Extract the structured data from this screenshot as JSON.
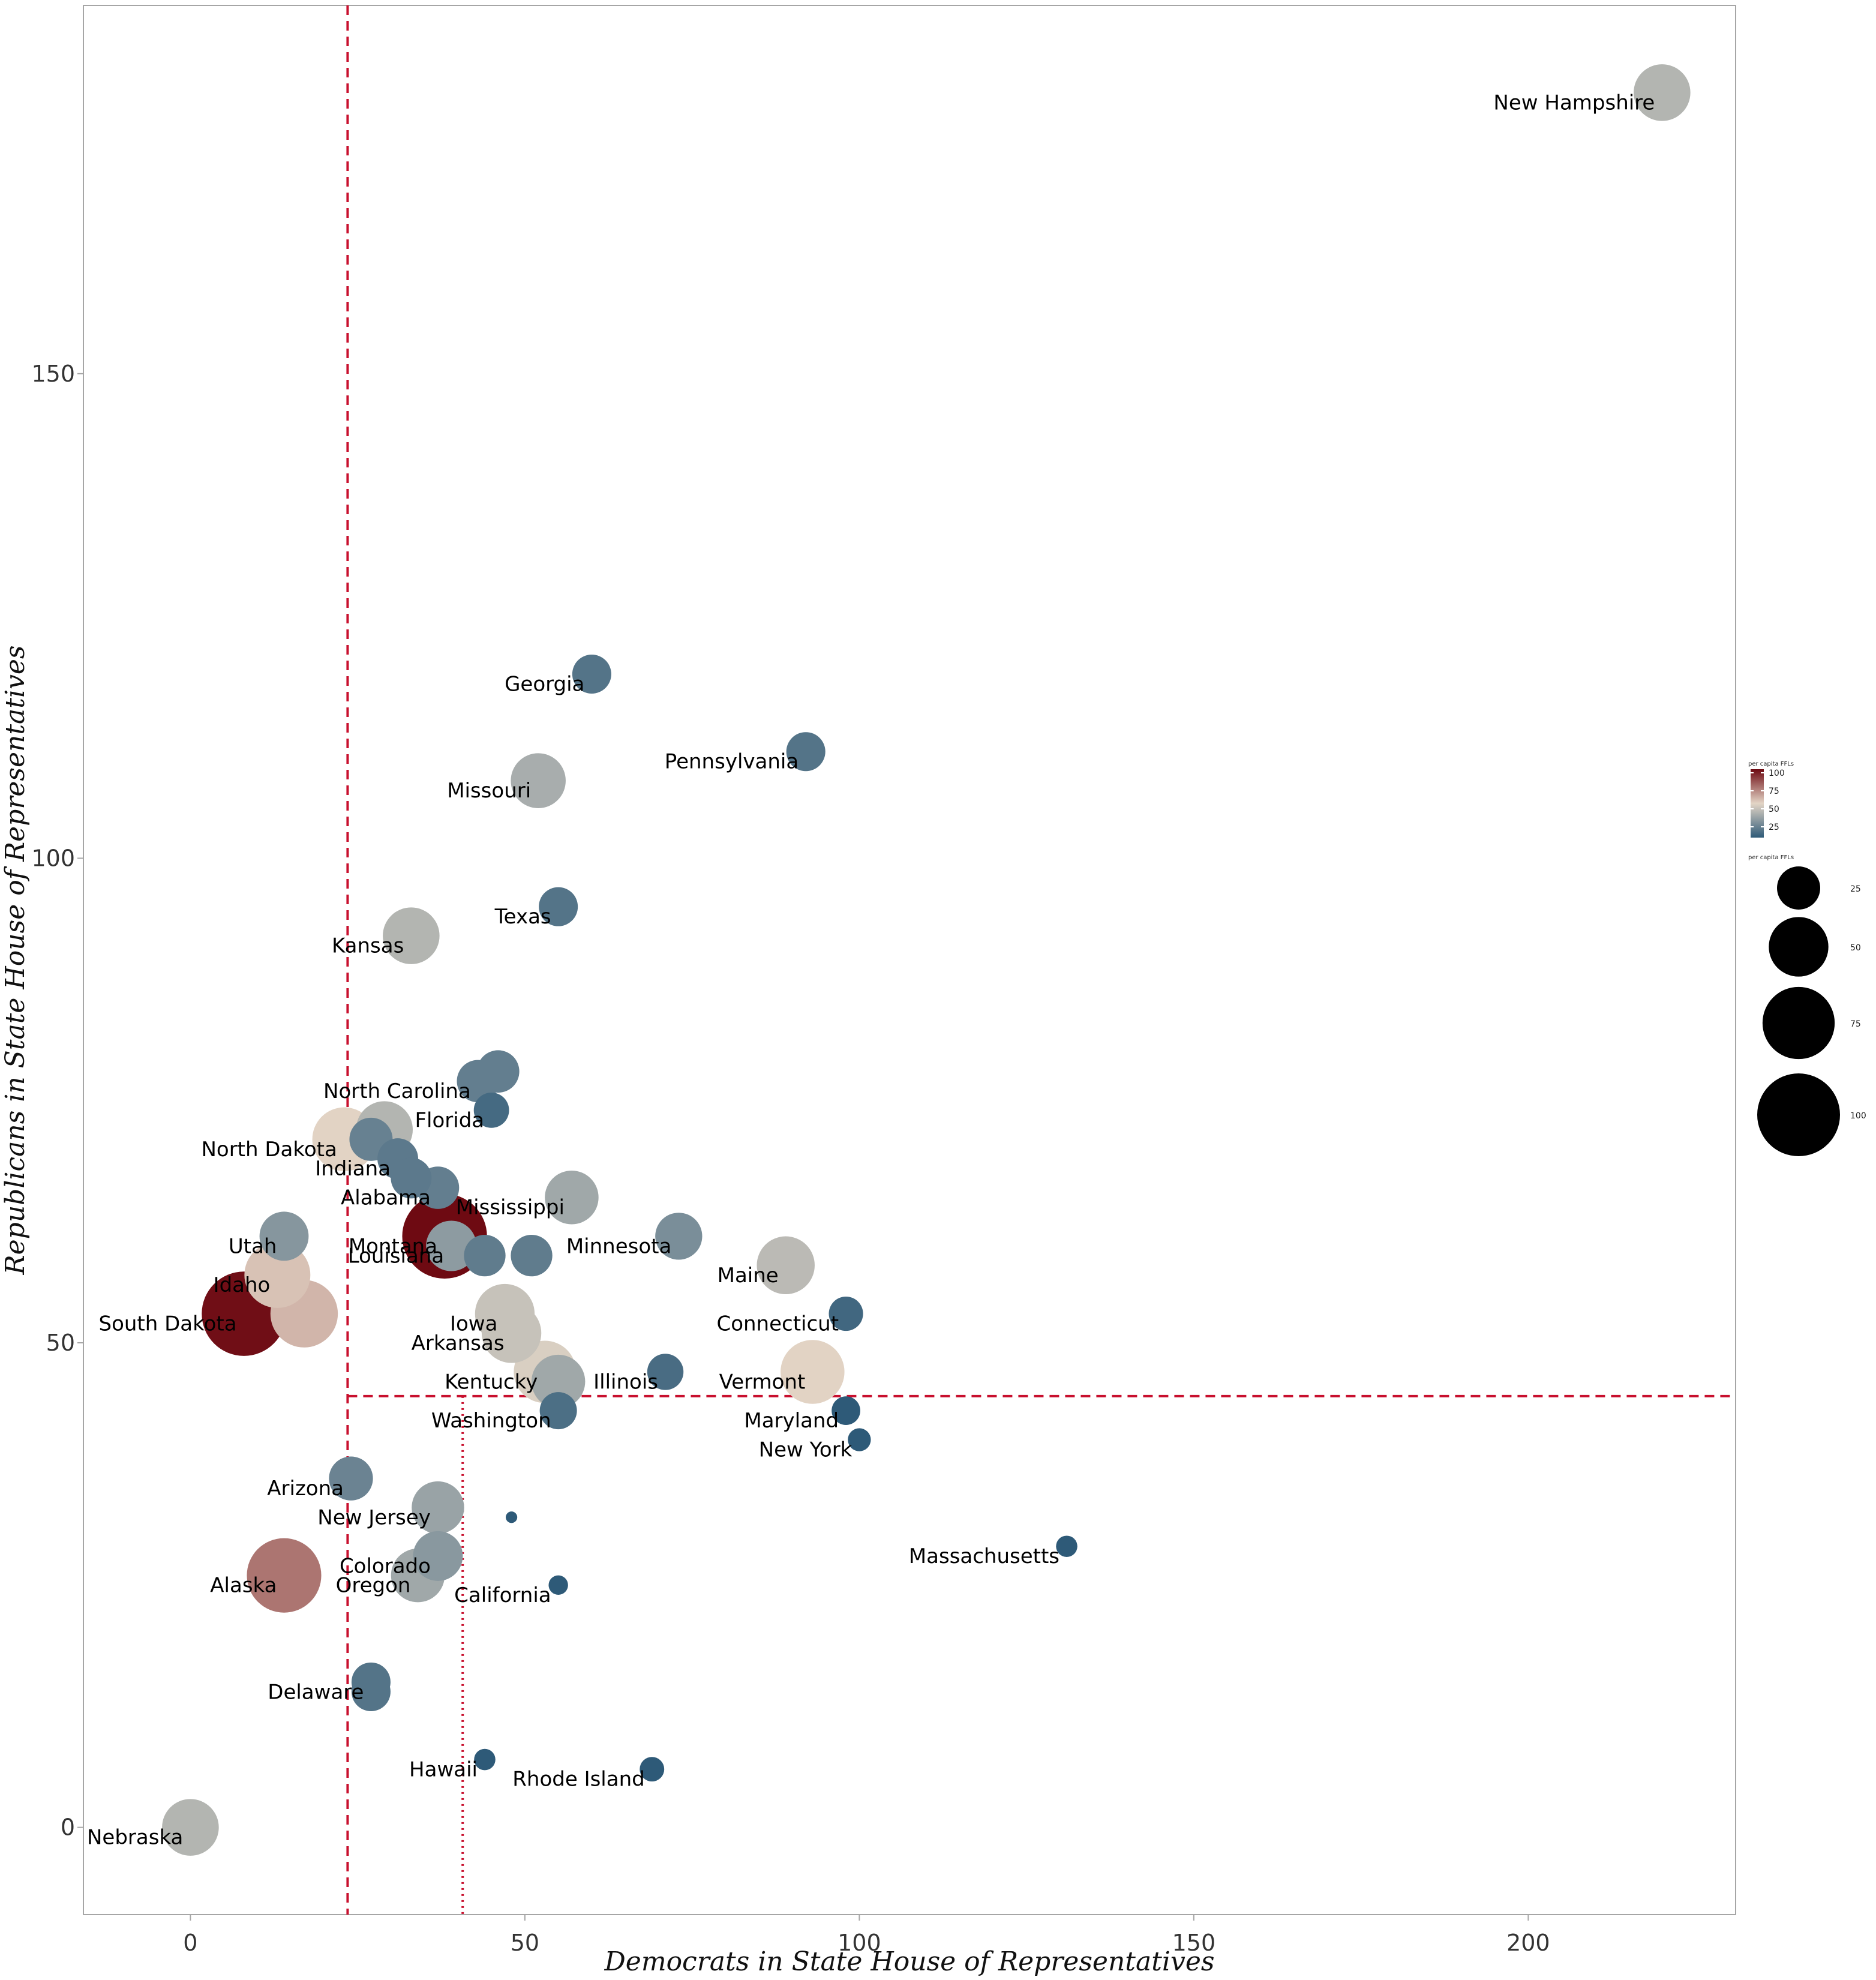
{
  "chart_data": {
    "type": "scatter",
    "xlabel": "Democrats in State House of Representatives",
    "ylabel": "Republicans in State House of Representatives",
    "xlim": [
      -16,
      231
    ],
    "ylim": [
      -9,
      188
    ],
    "x_ticks": [
      0,
      50,
      100,
      150,
      200
    ],
    "y_ticks": [
      0,
      50,
      100,
      150
    ],
    "grid": false,
    "reference_lines": [
      {
        "axis": "x",
        "value": 23.5,
        "style": "dashed",
        "color": "#c8102e"
      },
      {
        "axis": "y",
        "value": 44.5,
        "style": "dashed",
        "color": "#c8102e",
        "from_x": 23.5
      },
      {
        "axis": "x",
        "value": 40.7,
        "style": "dotted",
        "color": "#c8102e",
        "to_y": 44.5
      }
    ],
    "color_scale": {
      "name": "per capita FFLs",
      "low": "#2e5a78",
      "mid": "#e3d5c6",
      "high": "#6e0a12",
      "range": [
        10,
        105
      ],
      "ticks": [
        25,
        50,
        75,
        100
      ]
    },
    "size_legend": {
      "name": "per capita FFLs",
      "ticks": [
        25,
        50,
        75,
        100
      ]
    },
    "legend_placement": "right",
    "points": [
      {
        "label": "New Hampshire",
        "x": 220,
        "y": 179,
        "ffl": 45
      },
      {
        "label": "Georgia",
        "x": 60,
        "y": 119,
        "ffl": 20
      },
      {
        "label": "Pennsylvania",
        "x": 92,
        "y": 111,
        "ffl": 20
      },
      {
        "label": "Missouri",
        "x": 52,
        "y": 108,
        "ffl": 42
      },
      {
        "label": "Texas",
        "x": 55,
        "y": 95,
        "ffl": 20
      },
      {
        "label": "Kansas",
        "x": 33,
        "y": 92,
        "ffl": 45
      },
      {
        "label": "North Carolina",
        "x": 43,
        "y": 77,
        "ffl": 24
      },
      {
        "label": "",
        "x": 46,
        "y": 78,
        "ffl": 24
      },
      {
        "label": "Florida",
        "x": 45,
        "y": 74,
        "ffl": 16
      },
      {
        "label": "North Dakota",
        "x": 23,
        "y": 71,
        "ffl": 58
      },
      {
        "label": "",
        "x": 29,
        "y": 72,
        "ffl": 45
      },
      {
        "label": "",
        "x": 27,
        "y": 71,
        "ffl": 25
      },
      {
        "label": "Indiana",
        "x": 31,
        "y": 69,
        "ffl": 22
      },
      {
        "label": "",
        "x": 33,
        "y": 67,
        "ffl": 22
      },
      {
        "label": "Alabama",
        "x": 37,
        "y": 66,
        "ffl": 24
      },
      {
        "label": "Mississippi",
        "x": 57,
        "y": 65,
        "ffl": 40
      },
      {
        "label": "Montana",
        "x": 38,
        "y": 61,
        "ffl": 105
      },
      {
        "label": "Utah",
        "x": 14,
        "y": 61,
        "ffl": 33
      },
      {
        "label": "Minnesota",
        "x": 73,
        "y": 61,
        "ffl": 30
      },
      {
        "label": "Louisiana",
        "x": 39,
        "y": 60,
        "ffl": 35
      },
      {
        "label": "",
        "x": 44,
        "y": 59,
        "ffl": 23
      },
      {
        "label": "",
        "x": 51,
        "y": 59,
        "ffl": 23
      },
      {
        "label": "Maine",
        "x": 89,
        "y": 58,
        "ffl": 47
      },
      {
        "label": "Idaho",
        "x": 13,
        "y": 57,
        "ffl": 62
      },
      {
        "label": "South Dakota",
        "x": 8,
        "y": 53,
        "ffl": 104
      },
      {
        "label": "",
        "x": 17,
        "y": 53,
        "ffl": 65
      },
      {
        "label": "Iowa",
        "x": 47,
        "y": 53,
        "ffl": 50
      },
      {
        "label": "Connecticut",
        "x": 98,
        "y": 53,
        "ffl": 15
      },
      {
        "label": "Arkansas",
        "x": 48,
        "y": 51,
        "ffl": 50
      },
      {
        "label": "Illinois",
        "x": 71,
        "y": 47,
        "ffl": 17
      },
      {
        "label": "Vermont",
        "x": 93,
        "y": 47,
        "ffl": 58
      },
      {
        "label": "Kentucky",
        "x": 53,
        "y": 47,
        "ffl": 55
      },
      {
        "label": "",
        "x": 55,
        "y": 46,
        "ffl": 40
      },
      {
        "label": "Washington",
        "x": 55,
        "y": 43,
        "ffl": 18
      },
      {
        "label": "Maryland",
        "x": 98,
        "y": 43,
        "ffl": 10
      },
      {
        "label": "New York",
        "x": 100,
        "y": 40,
        "ffl": 6
      },
      {
        "label": "Arizona",
        "x": 24,
        "y": 36,
        "ffl": 26
      },
      {
        "label": "New Jersey",
        "x": 37,
        "y": 33,
        "ffl": 38
      },
      {
        "label": "",
        "x": 48,
        "y": 32,
        "ffl": 1
      },
      {
        "label": "Massachusetts",
        "x": 131,
        "y": 29,
        "ffl": 5
      },
      {
        "label": "Colorado",
        "x": 37,
        "y": 28,
        "ffl": 34
      },
      {
        "label": "Oregon",
        "x": 34,
        "y": 26,
        "ffl": 40
      },
      {
        "label": "Alaska",
        "x": 14,
        "y": 26,
        "ffl": 80
      },
      {
        "label": "California",
        "x": 55,
        "y": 25,
        "ffl": 4
      },
      {
        "label": "Delaware",
        "x": 27,
        "y": 15,
        "ffl": 20
      },
      {
        "label": "",
        "x": 27,
        "y": 14,
        "ffl": 20
      },
      {
        "label": "Hawaii",
        "x": 44,
        "y": 7,
        "ffl": 5
      },
      {
        "label": "Rhode Island",
        "x": 69,
        "y": 6,
        "ffl": 7
      },
      {
        "label": "Nebraska",
        "x": 0,
        "y": 0,
        "ffl": 45
      }
    ]
  }
}
